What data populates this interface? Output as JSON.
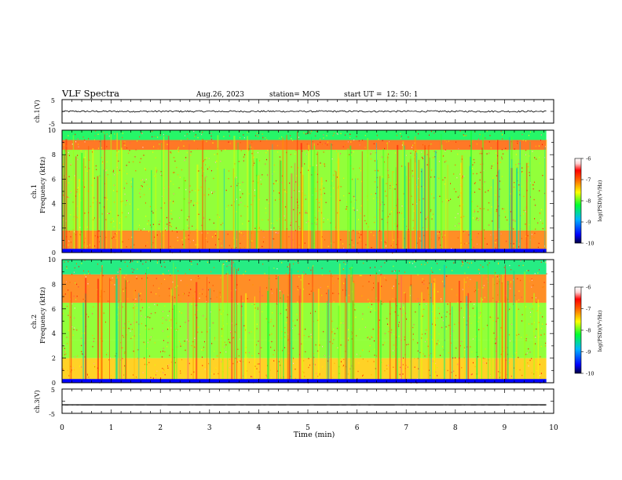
{
  "header": {
    "title": "VLF Spectra",
    "date": "Aug.26, 2023",
    "station": "station= MOS",
    "start_label": "start UT =",
    "start_time": "12: 50: 1"
  },
  "chart_data": [
    {
      "type": "line",
      "name": "ch1-waveform",
      "ylabel": "ch.1(V)",
      "ylim": [
        -5,
        5
      ],
      "y_ticks": [
        "5",
        "-5"
      ],
      "x_range_min": [
        0,
        9.85
      ],
      "level_v": 0.0,
      "noise_amplitude_v": 0.35
    },
    {
      "type": "heatmap",
      "name": "ch1-spectrogram",
      "ylabel_channel": "ch.1",
      "ylabel": "Frequency (kHz)",
      "ylim": [
        0,
        10
      ],
      "y_ticks": [
        "0",
        "2",
        "4",
        "6",
        "8",
        "10"
      ],
      "x_range_min": [
        0,
        9.85
      ],
      "bands_khz": [
        {
          "from": 0,
          "to": 0.3,
          "level": -9.6
        },
        {
          "from": 0.3,
          "to": 1.8,
          "level": -7.1
        },
        {
          "from": 1.8,
          "to": 8.4,
          "level": -7.9
        },
        {
          "from": 8.4,
          "to": 9.2,
          "level": -7.0
        },
        {
          "from": 9.2,
          "to": 10,
          "level": -8.3
        }
      ],
      "colorbar": {
        "label": "log(PSD)(V²/Hz)",
        "ticks": [
          "-6",
          "-7",
          "-8",
          "-9",
          "-10"
        ],
        "range": [
          -10,
          -6
        ]
      }
    },
    {
      "type": "heatmap",
      "name": "ch2-spectrogram",
      "ylabel_channel": "ch.2",
      "ylabel": "Frequency (kHz)",
      "ylim": [
        0,
        10
      ],
      "y_ticks": [
        "0",
        "2",
        "4",
        "6",
        "8",
        "10"
      ],
      "x_range_min": [
        0,
        9.85
      ],
      "bands_khz": [
        {
          "from": 0,
          "to": 0.3,
          "level": -9.5
        },
        {
          "from": 0.3,
          "to": 2.0,
          "level": -7.4
        },
        {
          "from": 2.0,
          "to": 3.5,
          "level": -7.9
        },
        {
          "from": 3.5,
          "to": 6.5,
          "level": -7.9
        },
        {
          "from": 6.5,
          "to": 8.8,
          "level": -7.1
        },
        {
          "from": 8.8,
          "to": 10,
          "level": -8.4
        }
      ],
      "colorbar": {
        "label": "log(PSD)(V²/Hz)",
        "ticks": [
          "-6",
          "-7",
          "-8",
          "-9",
          "-10"
        ],
        "range": [
          -10,
          -6
        ]
      }
    },
    {
      "type": "line",
      "name": "ch3-waveform",
      "ylabel": "ch.3(V)",
      "ylim": [
        -5,
        5
      ],
      "y_ticks": [
        "5",
        "-5"
      ],
      "x_range_min": [
        0,
        9.85
      ],
      "level_v": -1.5,
      "noise_amplitude_v": 0.02
    }
  ],
  "x_axis": {
    "label": "Time (min)",
    "xlim": [
      0,
      10
    ],
    "ticks": [
      "0",
      "1",
      "2",
      "3",
      "4",
      "5",
      "6",
      "7",
      "8",
      "9",
      "10"
    ]
  }
}
